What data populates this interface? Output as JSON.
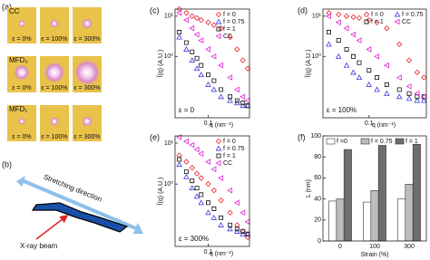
{
  "images": {
    "label": "(a)",
    "rows": [
      "CC",
      "MFD₀",
      "MFD₁"
    ],
    "strains": [
      "ε = 0%",
      "ε = 100%",
      "ε = 300%"
    ]
  },
  "diagram": {
    "label": "(b)",
    "direction": "Stretching direction",
    "beam": "X-ray beam"
  },
  "chart_data": [
    {
      "type": "scatter",
      "panel": "(c)",
      "annotation": "ε = 0",
      "xlabel": "q (nm⁻¹)",
      "ylabel": "Ĩ(q) (A.U.)",
      "xscale": "log",
      "yscale": "log",
      "x": [
        0.04,
        0.05,
        0.06,
        0.07,
        0.08,
        0.1,
        0.12,
        0.15,
        0.2,
        0.25,
        0.3,
        0.35
      ],
      "xlim": [
        0.035,
        0.37
      ],
      "xticks": [
        0.1
      ],
      "ylim": [
        0.03,
        15
      ],
      "yticks": [
        {
          "value": 10,
          "label": "10¹"
        },
        {
          "value": 1,
          "label": "10⁰"
        }
      ],
      "series": [
        {
          "name": "f = 0",
          "color": "#e8242a",
          "marker": "diamond",
          "values": [
            15,
            12,
            10,
            9,
            8,
            7,
            6,
            5,
            3,
            1.5,
            0.8,
            0.5
          ]
        },
        {
          "name": "f = 0.75",
          "color": "#3a3ae0",
          "marker": "triangle-up",
          "values": [
            3,
            1.5,
            0.8,
            0.5,
            0.35,
            0.2,
            0.15,
            0.1,
            0.08,
            0.07,
            0.06,
            0.06
          ]
        },
        {
          "name": "f = 1",
          "color": "#111111",
          "marker": "square",
          "values": [
            4,
            2.2,
            1.3,
            0.9,
            0.6,
            0.35,
            0.25,
            0.15,
            0.1,
            0.08,
            0.07,
            0.06
          ]
        },
        {
          "name": "CC",
          "color": "#e020d0",
          "marker": "triangle-left",
          "values": [
            12,
            8,
            5,
            3.5,
            2.5,
            1.5,
            1,
            0.6,
            0.3,
            0.15,
            0.1,
            0.08
          ]
        }
      ]
    },
    {
      "type": "scatter",
      "panel": "(d)",
      "annotation": "ε = 100%",
      "xlabel": "q (nm⁻¹)",
      "ylabel": "Ĩ(q) (A.U.)",
      "xscale": "log",
      "yscale": "log",
      "x": [
        0.04,
        0.05,
        0.06,
        0.07,
        0.08,
        0.1,
        0.12,
        0.15,
        0.2,
        0.25,
        0.3,
        0.35
      ],
      "xlim": [
        0.035,
        0.37
      ],
      "xticks": [
        0.1
      ],
      "ylim": [
        0.03,
        15
      ],
      "yticks": [
        {
          "value": 10,
          "label": "10¹"
        },
        {
          "value": 1,
          "label": "10⁰"
        }
      ],
      "series": [
        {
          "name": "f = 0",
          "color": "#e8242a",
          "marker": "diamond",
          "values": [
            12,
            11,
            10,
            9.5,
            9,
            8,
            7,
            5,
            2,
            0.8,
            0.4,
            0.3
          ]
        },
        {
          "name": "f = 0.75",
          "color": "#3a3ae0",
          "marker": "triangle-up",
          "values": [
            2,
            1,
            0.6,
            0.4,
            0.3,
            0.2,
            0.15,
            0.12,
            0.1,
            0.09,
            0.08,
            0.08
          ]
        },
        {
          "name": "f = 1",
          "color": "#111111",
          "marker": "square",
          "values": [
            4,
            2.5,
            1.5,
            1,
            0.7,
            0.45,
            0.3,
            0.2,
            0.15,
            0.12,
            0.1,
            0.1
          ]
        },
        {
          "name": "CC",
          "color": "#e020d0",
          "marker": "triangle-left",
          "values": [
            10,
            7,
            5,
            3.5,
            2.5,
            1.5,
            1,
            0.6,
            0.3,
            0.18,
            0.12,
            0.1
          ]
        }
      ]
    },
    {
      "type": "scatter",
      "panel": "(e)",
      "annotation": "ε = 300%",
      "xlabel": "q (nm⁻¹)",
      "ylabel": "Ĩ(q) (A.U.)",
      "xscale": "log",
      "yscale": "log",
      "x": [
        0.04,
        0.05,
        0.06,
        0.07,
        0.08,
        0.1,
        0.12,
        0.15,
        0.2,
        0.25,
        0.3,
        0.35
      ],
      "xlim": [
        0.035,
        0.37
      ],
      "xticks": [
        0.1
      ],
      "ylim": [
        0.03,
        15
      ],
      "yticks": [
        {
          "value": 10,
          "label": "10¹"
        },
        {
          "value": 1,
          "label": "10⁰"
        }
      ],
      "series": [
        {
          "name": "f = 0",
          "color": "#e8242a",
          "marker": "diamond",
          "values": [
            5,
            3.5,
            2.5,
            1.8,
            1.4,
            1,
            0.7,
            0.4,
            0.2,
            0.1,
            0.07,
            0.05
          ]
        },
        {
          "name": "f = 0.75",
          "color": "#3a3ae0",
          "marker": "triangle-up",
          "values": [
            3,
            1.5,
            0.8,
            0.5,
            0.35,
            0.2,
            0.15,
            0.1,
            0.08,
            0.07,
            0.06,
            0.06
          ]
        },
        {
          "name": "f = 1",
          "color": "#111111",
          "marker": "square",
          "values": [
            4,
            2,
            1.2,
            0.8,
            0.55,
            0.35,
            0.25,
            0.15,
            0.1,
            0.08,
            0.07,
            0.06
          ]
        },
        {
          "name": "CC",
          "color": "#e020d0",
          "marker": "triangle-left",
          "values": [
            14,
            11,
            9,
            7,
            5.5,
            3.5,
            2.3,
            1.4,
            0.7,
            0.35,
            0.2,
            0.12
          ]
        }
      ]
    },
    {
      "type": "bar",
      "panel": "(f)",
      "xlabel": "Strain (%)",
      "ylabel": "L (nm)",
      "categories": [
        "0",
        "100",
        "300"
      ],
      "ylim": [
        0,
        100
      ],
      "yticks": [
        0,
        20,
        40,
        60,
        80,
        100
      ],
      "series": [
        {
          "name": "f =0",
          "color": "#ffffff",
          "values": [
            38,
            37,
            40
          ]
        },
        {
          "name": "f = 0.75",
          "color": "#bdbdbd",
          "values": [
            40,
            48,
            54
          ]
        },
        {
          "name": "f = 1",
          "color": "#6e6e6e",
          "values": [
            87,
            91,
            92
          ]
        }
      ]
    }
  ]
}
